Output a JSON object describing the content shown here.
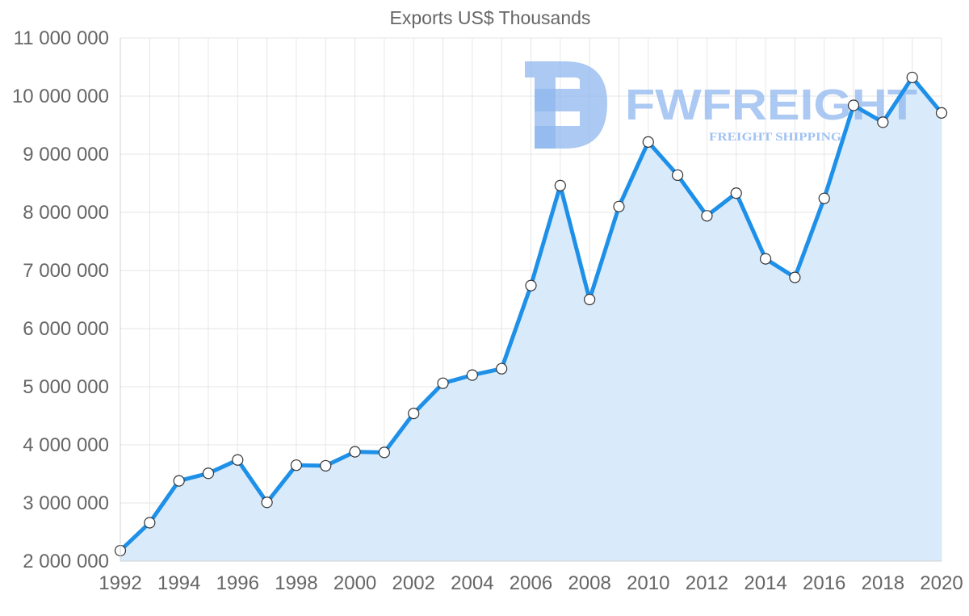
{
  "chart_data": {
    "type": "area",
    "title": "Exports US$ Thousands",
    "xlabel": "",
    "ylabel": "",
    "ylim": [
      2000000,
      11000000
    ],
    "y_ticks": [
      2000000,
      3000000,
      4000000,
      5000000,
      6000000,
      7000000,
      8000000,
      9000000,
      10000000,
      11000000
    ],
    "y_tick_labels": [
      "2 000 000",
      "3 000 000",
      "4 000 000",
      "5 000 000",
      "6 000 000",
      "7 000 000",
      "8 000 000",
      "9 000 000",
      "10 000 000",
      "11 000 000"
    ],
    "xlim": [
      1992,
      2020
    ],
    "x_ticks": [
      1992,
      1994,
      1996,
      1998,
      2000,
      2002,
      2004,
      2006,
      2008,
      2010,
      2012,
      2014,
      2016,
      2018,
      2020
    ],
    "x_tick_labels": [
      "1992",
      "1994",
      "1996",
      "1998",
      "2000",
      "2002",
      "2004",
      "2006",
      "2008",
      "2010",
      "2012",
      "2014",
      "2016",
      "2018",
      "2020"
    ],
    "grid": true,
    "legend": "none",
    "series": [
      {
        "name": "Exports US$ Thousands",
        "x": [
          1992,
          1993,
          1994,
          1995,
          1996,
          1997,
          1998,
          1999,
          2000,
          2001,
          2002,
          2003,
          2004,
          2005,
          2006,
          2007,
          2008,
          2009,
          2010,
          2011,
          2012,
          2013,
          2014,
          2015,
          2016,
          2017,
          2018,
          2019,
          2020
        ],
        "values": [
          2180000,
          2660000,
          3380000,
          3510000,
          3740000,
          3010000,
          3650000,
          3640000,
          3880000,
          3870000,
          4540000,
          5060000,
          5200000,
          5310000,
          6740000,
          8460000,
          6500000,
          8100000,
          9210000,
          8640000,
          7940000,
          8330000,
          7200000,
          6880000,
          8240000,
          9840000,
          9550000,
          10320000,
          9710000
        ],
        "line_color": "#1e90e8",
        "fill_color": "#d9ebfb"
      }
    ]
  },
  "watermark": {
    "name": "FWFREIGHT",
    "tagline": "FREIGHT SHIPPING",
    "color": "#8fb7ee"
  }
}
